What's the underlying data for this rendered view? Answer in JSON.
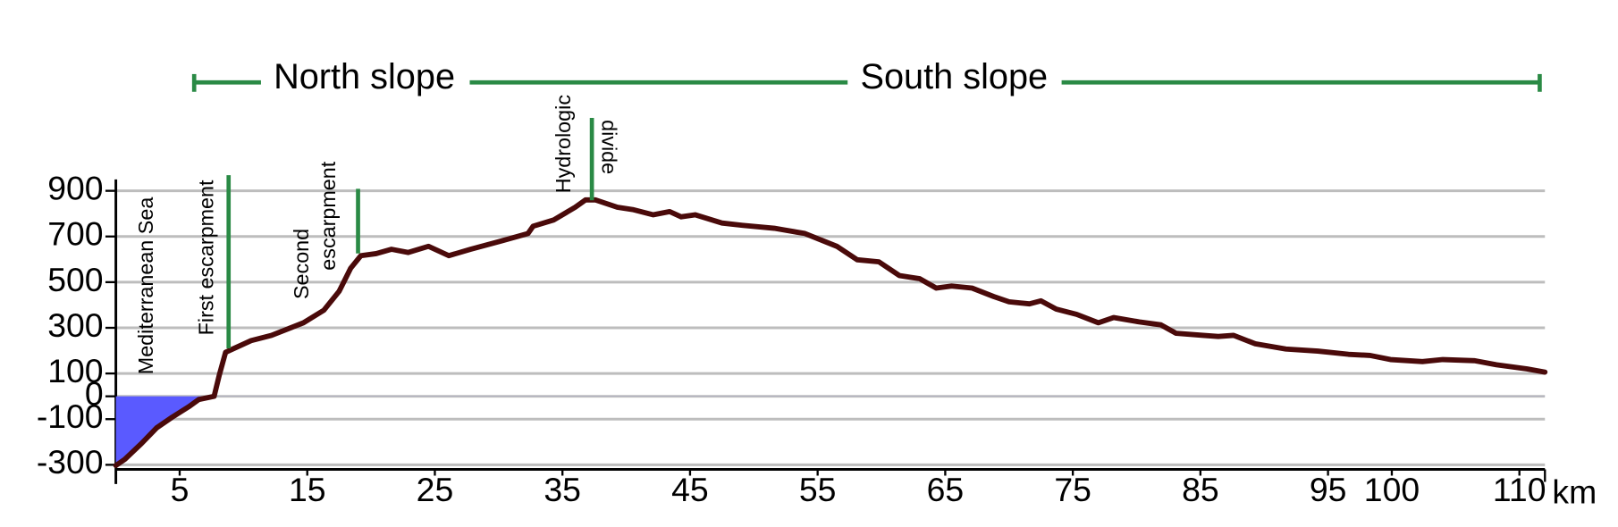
{
  "chart_data": {
    "type": "line",
    "xlabel": "km",
    "sections": [
      "North slope",
      "South slope"
    ],
    "annotations": [
      [
        "Mediterranean Sea"
      ],
      [
        "First escarpment"
      ],
      [
        "Second",
        "escarpment"
      ],
      [
        "Hydrologic",
        "divide"
      ]
    ],
    "xlim": [
      0,
      112
    ],
    "xticks": [
      5,
      15,
      25,
      35,
      45,
      55,
      65,
      75,
      85,
      95,
      100,
      110
    ],
    "ylim": [
      -320,
      950
    ],
    "yticks": [
      -300,
      -100,
      0,
      100,
      300,
      500,
      700,
      900
    ],
    "grid": true,
    "sea_color": "#5a5aff",
    "series": [
      {
        "name": null,
        "color": "#4a0a0a",
        "x": [
          0,
          0.7,
          2,
          3.2,
          4.4,
          5.7,
          6.5,
          7.7,
          8.1,
          8.6,
          10.6,
          12.2,
          14.7,
          16.3,
          17.5,
          18.4,
          19.2,
          20.4,
          21.6,
          22.9,
          24.5,
          26.1,
          27.8,
          30.2,
          32.3,
          32.7,
          34.3,
          36,
          36.8,
          37.6,
          39.3,
          40.5,
          42.1,
          43.4,
          44.3,
          45.4,
          47.5,
          49.1,
          51.6,
          54,
          56.5,
          58.1,
          59.8,
          61.4,
          63,
          64.3,
          65.5,
          67.1,
          68.8,
          70,
          71.6,
          72.5,
          73.7,
          75.3,
          77,
          78.2,
          80.2,
          81.9,
          83.1,
          85.2,
          86.4,
          87.6,
          89.3,
          91.7,
          94.2,
          96.6,
          98.3,
          99.9,
          102.4,
          104,
          106.5,
          108.2,
          110.6,
          112
        ],
        "values": [
          -303,
          -276,
          -207,
          -138,
          -92,
          -46,
          -14,
          0,
          92,
          193,
          244,
          267,
          322,
          377,
          460,
          561,
          616,
          625,
          644,
          630,
          657,
          616,
          644,
          680,
          713,
          745,
          772,
          828,
          860,
          860,
          828,
          818,
          795,
          809,
          786,
          795,
          759,
          749,
          736,
          713,
          657,
          598,
          589,
          529,
          515,
          474,
          483,
          474,
          437,
          414,
          405,
          418,
          382,
          359,
          322,
          345,
          326,
          313,
          276,
          267,
          262,
          267,
          230,
          207,
          198,
          184,
          179,
          161,
          152,
          161,
          156,
          138,
          120,
          106
        ]
      }
    ]
  }
}
